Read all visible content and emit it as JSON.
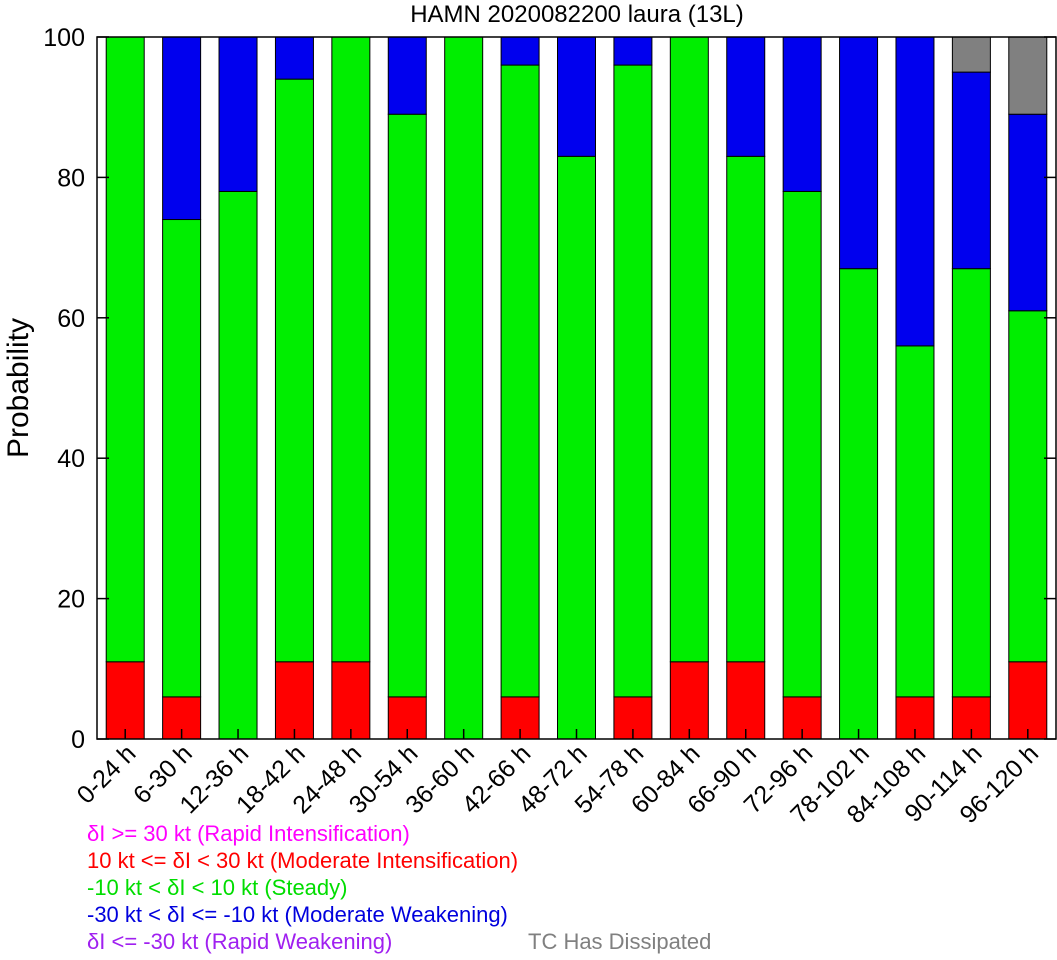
{
  "chart_data": {
    "type": "bar",
    "stacked": true,
    "title": "HAMN 2020082200 laura (13L)",
    "ylabel": "Probability",
    "ylim": [
      0,
      100
    ],
    "yticks": [
      0,
      20,
      40,
      60,
      80,
      100
    ],
    "categories": [
      "0-24 h",
      "6-30 h",
      "12-36 h",
      "18-42 h",
      "24-48 h",
      "30-54 h",
      "36-60 h",
      "42-66 h",
      "48-72 h",
      "54-78 h",
      "60-84 h",
      "66-90 h",
      "72-96 h",
      "78-102 h",
      "84-108 h",
      "90-114 h",
      "96-120 h"
    ],
    "series": [
      {
        "name": "Rapid Intensification",
        "color": "#ff00ff",
        "values": [
          0,
          0,
          0,
          0,
          0,
          0,
          0,
          0,
          0,
          0,
          0,
          0,
          0,
          0,
          0,
          0,
          0
        ]
      },
      {
        "name": "Moderate Intensification",
        "color": "#ff0000",
        "values": [
          11,
          6,
          0,
          11,
          11,
          6,
          0,
          6,
          0,
          6,
          11,
          11,
          6,
          0,
          6,
          6,
          11
        ]
      },
      {
        "name": "Steady",
        "color": "#00ee00",
        "values": [
          89,
          68,
          78,
          83,
          89,
          83,
          100,
          90,
          83,
          90,
          89,
          72,
          72,
          67,
          50,
          61,
          50
        ]
      },
      {
        "name": "Moderate Weakening",
        "color": "#0000ee",
        "values": [
          0,
          26,
          22,
          6,
          0,
          11,
          0,
          4,
          17,
          4,
          0,
          17,
          22,
          33,
          44,
          28,
          28
        ]
      },
      {
        "name": "Rapid Weakening",
        "color": "#a020f0",
        "values": [
          0,
          0,
          0,
          0,
          0,
          0,
          0,
          0,
          0,
          0,
          0,
          0,
          0,
          0,
          0,
          0,
          0
        ]
      },
      {
        "name": "TC Has Dissipated",
        "color": "#808080",
        "values": [
          0,
          0,
          0,
          0,
          0,
          0,
          0,
          0,
          0,
          0,
          0,
          0,
          0,
          0,
          0,
          5,
          11
        ]
      }
    ]
  },
  "legend": [
    {
      "text": "δI >= 30 kt (Rapid Intensification)",
      "color": "#ff00ff"
    },
    {
      "text": "10 kt <= δI < 30 kt (Moderate Intensification)",
      "color": "#ff0000"
    },
    {
      "text": "-10 kt < δI < 10 kt (Steady)",
      "color": "#00dd00"
    },
    {
      "text": "-30 kt < δI <= -10 kt (Moderate Weakening)",
      "color": "#0000dd"
    },
    {
      "text": "δI <= -30 kt (Rapid Weakening)",
      "color": "#a020f0"
    },
    {
      "text": "TC Has Dissipated",
      "color": "#808080"
    }
  ]
}
